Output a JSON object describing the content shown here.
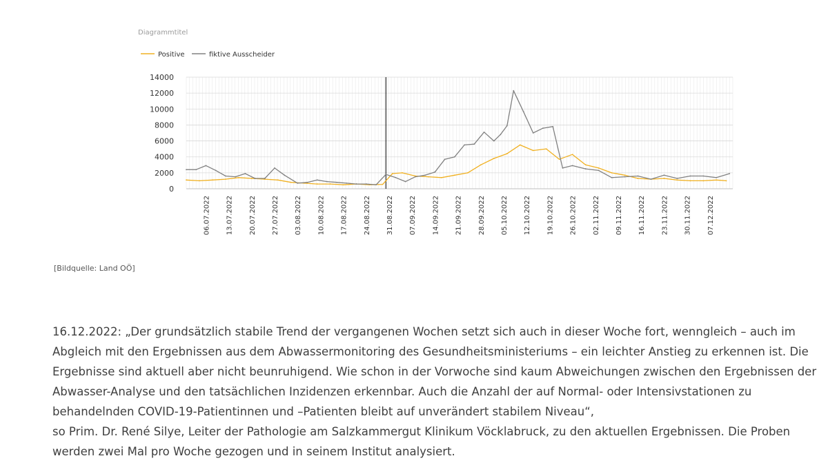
{
  "chart_data": {
    "type": "line",
    "title": "Diagrammtitel",
    "legend_position": "top-left",
    "grid": true,
    "ylim": [
      0,
      14000
    ],
    "y_ticks": [
      0,
      2000,
      4000,
      6000,
      8000,
      10000,
      12000,
      14000
    ],
    "x_tick_labels": [
      "06.07.2022",
      "13.07.2022",
      "20.07.2022",
      "27.07.2022",
      "03.08.2022",
      "10.08.2022",
      "17.08.2022",
      "24.08.2022",
      "31.08.2022",
      "07.09.2022",
      "14.09.2022",
      "21.09.2022",
      "28.09.2022",
      "05.10.2022",
      "12.10.2022",
      "19.10.2022",
      "26.10.2022",
      "02.11.2022",
      "09.11.2022",
      "16.11.2022",
      "23.11.2022",
      "30.11.2022",
      "07.12.2022"
    ],
    "first_date": "2022-06-30",
    "reference_line_date": "2022-08-30",
    "series": [
      {
        "name": "Positive",
        "color": "#f0b020",
        "x": [
          "2022-06-30",
          "2022-07-04",
          "2022-07-08",
          "2022-07-12",
          "2022-07-16",
          "2022-07-20",
          "2022-07-24",
          "2022-07-28",
          "2022-08-01",
          "2022-08-05",
          "2022-08-09",
          "2022-08-13",
          "2022-08-17",
          "2022-08-21",
          "2022-08-25",
          "2022-08-29",
          "2022-09-01",
          "2022-09-04",
          "2022-09-08",
          "2022-09-12",
          "2022-09-16",
          "2022-09-20",
          "2022-09-24",
          "2022-09-28",
          "2022-10-02",
          "2022-10-06",
          "2022-10-10",
          "2022-10-14",
          "2022-10-18",
          "2022-10-22",
          "2022-10-26",
          "2022-10-30",
          "2022-11-03",
          "2022-11-07",
          "2022-11-11",
          "2022-11-15",
          "2022-11-19",
          "2022-11-23",
          "2022-11-27",
          "2022-12-01",
          "2022-12-05",
          "2022-12-09",
          "2022-12-12"
        ],
        "y": [
          1100,
          1000,
          1100,
          1200,
          1400,
          1300,
          1200,
          1100,
          800,
          700,
          600,
          600,
          500,
          600,
          500,
          550,
          1900,
          2000,
          1600,
          1500,
          1400,
          1700,
          2000,
          3000,
          3800,
          4400,
          5500,
          4800,
          5000,
          3700,
          4300,
          3000,
          2600,
          2000,
          1700,
          1300,
          1200,
          1300,
          1100,
          1000,
          1000,
          1100,
          1000
        ]
      },
      {
        "name": "fiktive Ausscheider",
        "color": "#808080",
        "x": [
          "2022-06-30",
          "2022-07-03",
          "2022-07-06",
          "2022-07-09",
          "2022-07-12",
          "2022-07-15",
          "2022-07-18",
          "2022-07-21",
          "2022-07-24",
          "2022-07-27",
          "2022-07-30",
          "2022-08-03",
          "2022-08-06",
          "2022-08-09",
          "2022-08-12",
          "2022-08-15",
          "2022-08-18",
          "2022-08-21",
          "2022-08-24",
          "2022-08-27",
          "2022-08-30",
          "2022-09-02",
          "2022-09-05",
          "2022-09-08",
          "2022-09-11",
          "2022-09-14",
          "2022-09-17",
          "2022-09-20",
          "2022-09-23",
          "2022-09-26",
          "2022-09-29",
          "2022-10-02",
          "2022-10-04",
          "2022-10-06",
          "2022-10-08",
          "2022-10-11",
          "2022-10-14",
          "2022-10-17",
          "2022-10-20",
          "2022-10-23",
          "2022-10-26",
          "2022-10-30",
          "2022-11-03",
          "2022-11-07",
          "2022-11-11",
          "2022-11-15",
          "2022-11-19",
          "2022-11-23",
          "2022-11-27",
          "2022-12-01",
          "2022-12-05",
          "2022-12-09",
          "2022-12-13"
        ],
        "y": [
          2400,
          2400,
          2900,
          2300,
          1600,
          1500,
          1900,
          1300,
          1300,
          2600,
          1700,
          700,
          800,
          1100,
          900,
          800,
          700,
          600,
          600,
          500,
          1800,
          1400,
          900,
          1500,
          1700,
          2100,
          3700,
          4000,
          5500,
          5600,
          7100,
          6000,
          6800,
          7900,
          12300,
          9700,
          7000,
          7600,
          7800,
          2600,
          2900,
          2500,
          2300,
          1400,
          1500,
          1600,
          1200,
          1700,
          1300,
          1600,
          1600,
          1400,
          1900
        ]
      }
    ]
  },
  "caption": "[Bildquelle: Land OÖ]",
  "article": {
    "paragraph_1": "16.12.2022: „Der grundsätzlich stabile Trend der vergangenen Wochen setzt sich auch in dieser Woche fort, wenngleich – auch im Abgleich mit den Ergebnissen aus dem Abwassermonitoring des Gesundheitsministeriums – ein leichter Anstieg zu erkennen ist. Die Ergebnisse sind aktuell aber nicht beunruhigend. Wie schon in der Vorwoche sind kaum Abweichungen zwischen den Ergebnissen der Abwasser-Analyse und den tatsächlichen Inzidenzen erkennbar. Auch die Anzahl der auf Normal- oder Intensivstationen zu behandelnden COVID-19-Patientinnen und –Patienten bleibt auf unverändert stabilem Niveau“,",
    "paragraph_2": "so Prim. Dr. René Silye, Leiter der Pathologie am Salzkammergut Klinikum Vöcklabruck, zu den aktuellen Ergebnissen. Die Proben werden zwei Mal pro Woche gezogen und in seinem Institut analysiert."
  }
}
